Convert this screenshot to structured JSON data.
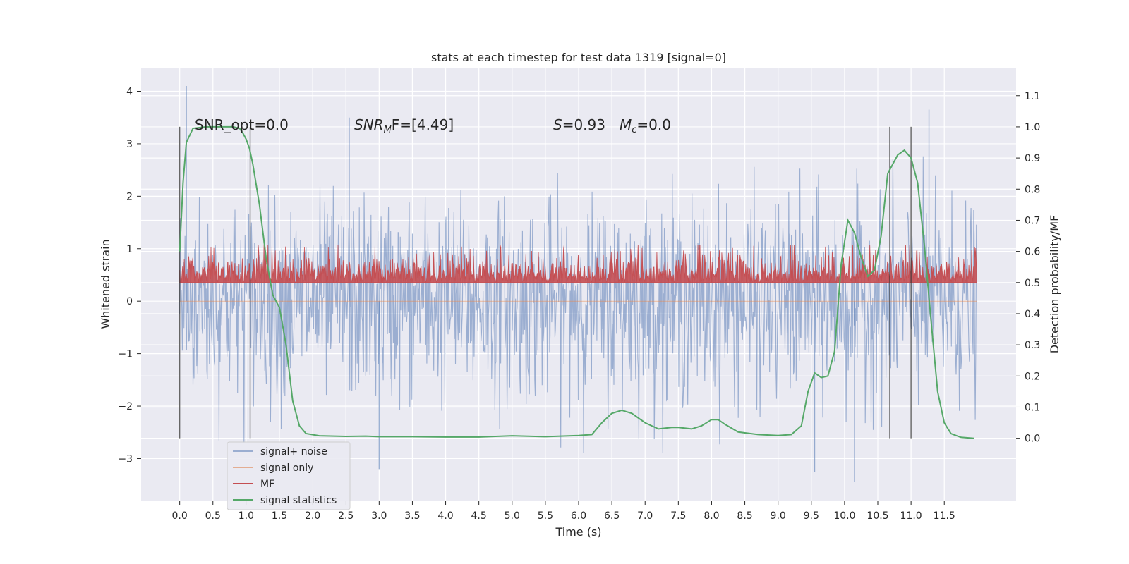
{
  "chart_data": {
    "type": "line",
    "title": "stats at each timestep for test data 1319 [signal=0]",
    "xlabel": "Time (s)",
    "ylabel": "Whitened strain",
    "y2label": "Detection probability/MF",
    "xlim": [
      -0.58,
      12.58
    ],
    "ylim": [
      -3.8,
      4.45
    ],
    "y2lim": [
      -0.2,
      1.19
    ],
    "x_ticks": [
      0.0,
      0.5,
      1.0,
      1.5,
      2.0,
      2.5,
      3.0,
      3.5,
      4.0,
      4.5,
      5.0,
      5.5,
      6.0,
      6.5,
      7.0,
      7.5,
      8.0,
      8.5,
      9.0,
      9.5,
      10.0,
      10.5,
      11.0,
      11.5
    ],
    "y_ticks": [
      -3,
      -2,
      -1,
      0,
      1,
      2,
      3,
      4
    ],
    "y2_ticks": [
      0.0,
      0.1,
      0.2,
      0.3,
      0.4,
      0.5,
      0.6,
      0.7,
      0.8,
      0.9,
      1.0,
      1.1
    ],
    "grid": true,
    "legend_position": "lower-left",
    "annotations": {
      "snr_opt": "SNR_opt=0.0",
      "snr_mf_base": "SNR",
      "snr_mf_sub": "M",
      "snr_mf_rest": "F=[4.49]",
      "s_sym": "S",
      "s_val": "=0.93",
      "mc_sym": "M",
      "mc_sub": "c",
      "mc_val": "=0.0"
    },
    "vertical_lines_x": [
      0.0,
      1.06,
      10.68,
      11.0
    ],
    "series": [
      {
        "name": "signal+ noise",
        "color": "#4c72b0",
        "axis": "left",
        "envelope": {
          "x_range": [
            0.0,
            11.99
          ],
          "typical_amplitude": 1.5,
          "max": 4.1,
          "min": -3.4,
          "peaks": [
            {
              "x": 0.1,
              "y": 4.1
            },
            {
              "x": 2.55,
              "y": 3.5
            },
            {
              "x": 11.27,
              "y": 3.65
            },
            {
              "x": 3.0,
              "y": -3.2
            },
            {
              "x": 9.55,
              "y": -3.25
            },
            {
              "x": 10.15,
              "y": -3.45
            }
          ]
        }
      },
      {
        "name": "signal only",
        "color": "#dd8452",
        "axis": "left",
        "values_note": "zero"
      },
      {
        "name": "MF",
        "color": "#c44e52",
        "axis": "right",
        "baseline": 0.5,
        "typical_max": 0.58,
        "max": 0.62
      },
      {
        "name": "signal statistics",
        "color": "#55a868",
        "axis": "right",
        "points": [
          [
            0.0,
            0.6
          ],
          [
            0.05,
            0.82
          ],
          [
            0.1,
            0.95
          ],
          [
            0.2,
            0.995
          ],
          [
            0.4,
            1.0
          ],
          [
            0.6,
            1.0
          ],
          [
            0.8,
            1.0
          ],
          [
            0.9,
            0.995
          ],
          [
            0.95,
            0.98
          ],
          [
            1.0,
            0.96
          ],
          [
            1.05,
            0.93
          ],
          [
            1.1,
            0.88
          ],
          [
            1.2,
            0.75
          ],
          [
            1.3,
            0.58
          ],
          [
            1.4,
            0.46
          ],
          [
            1.5,
            0.42
          ],
          [
            1.6,
            0.3
          ],
          [
            1.7,
            0.12
          ],
          [
            1.8,
            0.04
          ],
          [
            1.9,
            0.015
          ],
          [
            2.1,
            0.008
          ],
          [
            2.5,
            0.006
          ],
          [
            2.8,
            0.007
          ],
          [
            3.0,
            0.005
          ],
          [
            3.5,
            0.005
          ],
          [
            4.0,
            0.004
          ],
          [
            4.5,
            0.004
          ],
          [
            5.0,
            0.008
          ],
          [
            5.5,
            0.005
          ],
          [
            6.0,
            0.009
          ],
          [
            6.2,
            0.012
          ],
          [
            6.35,
            0.05
          ],
          [
            6.5,
            0.08
          ],
          [
            6.65,
            0.09
          ],
          [
            6.8,
            0.08
          ],
          [
            7.0,
            0.05
          ],
          [
            7.2,
            0.03
          ],
          [
            7.4,
            0.035
          ],
          [
            7.5,
            0.035
          ],
          [
            7.7,
            0.03
          ],
          [
            7.85,
            0.04
          ],
          [
            8.0,
            0.06
          ],
          [
            8.1,
            0.06
          ],
          [
            8.2,
            0.045
          ],
          [
            8.4,
            0.02
          ],
          [
            8.7,
            0.012
          ],
          [
            9.0,
            0.009
          ],
          [
            9.2,
            0.012
          ],
          [
            9.35,
            0.04
          ],
          [
            9.45,
            0.15
          ],
          [
            9.55,
            0.21
          ],
          [
            9.65,
            0.195
          ],
          [
            9.75,
            0.2
          ],
          [
            9.85,
            0.28
          ],
          [
            9.95,
            0.56
          ],
          [
            10.05,
            0.7
          ],
          [
            10.15,
            0.66
          ],
          [
            10.25,
            0.58
          ],
          [
            10.35,
            0.52
          ],
          [
            10.45,
            0.54
          ],
          [
            10.55,
            0.65
          ],
          [
            10.65,
            0.85
          ],
          [
            10.8,
            0.91
          ],
          [
            10.9,
            0.925
          ],
          [
            11.0,
            0.9
          ],
          [
            11.1,
            0.82
          ],
          [
            11.2,
            0.62
          ],
          [
            11.3,
            0.38
          ],
          [
            11.4,
            0.15
          ],
          [
            11.5,
            0.05
          ],
          [
            11.6,
            0.015
          ],
          [
            11.75,
            0.003
          ],
          [
            11.95,
            0.0
          ]
        ]
      }
    ]
  }
}
